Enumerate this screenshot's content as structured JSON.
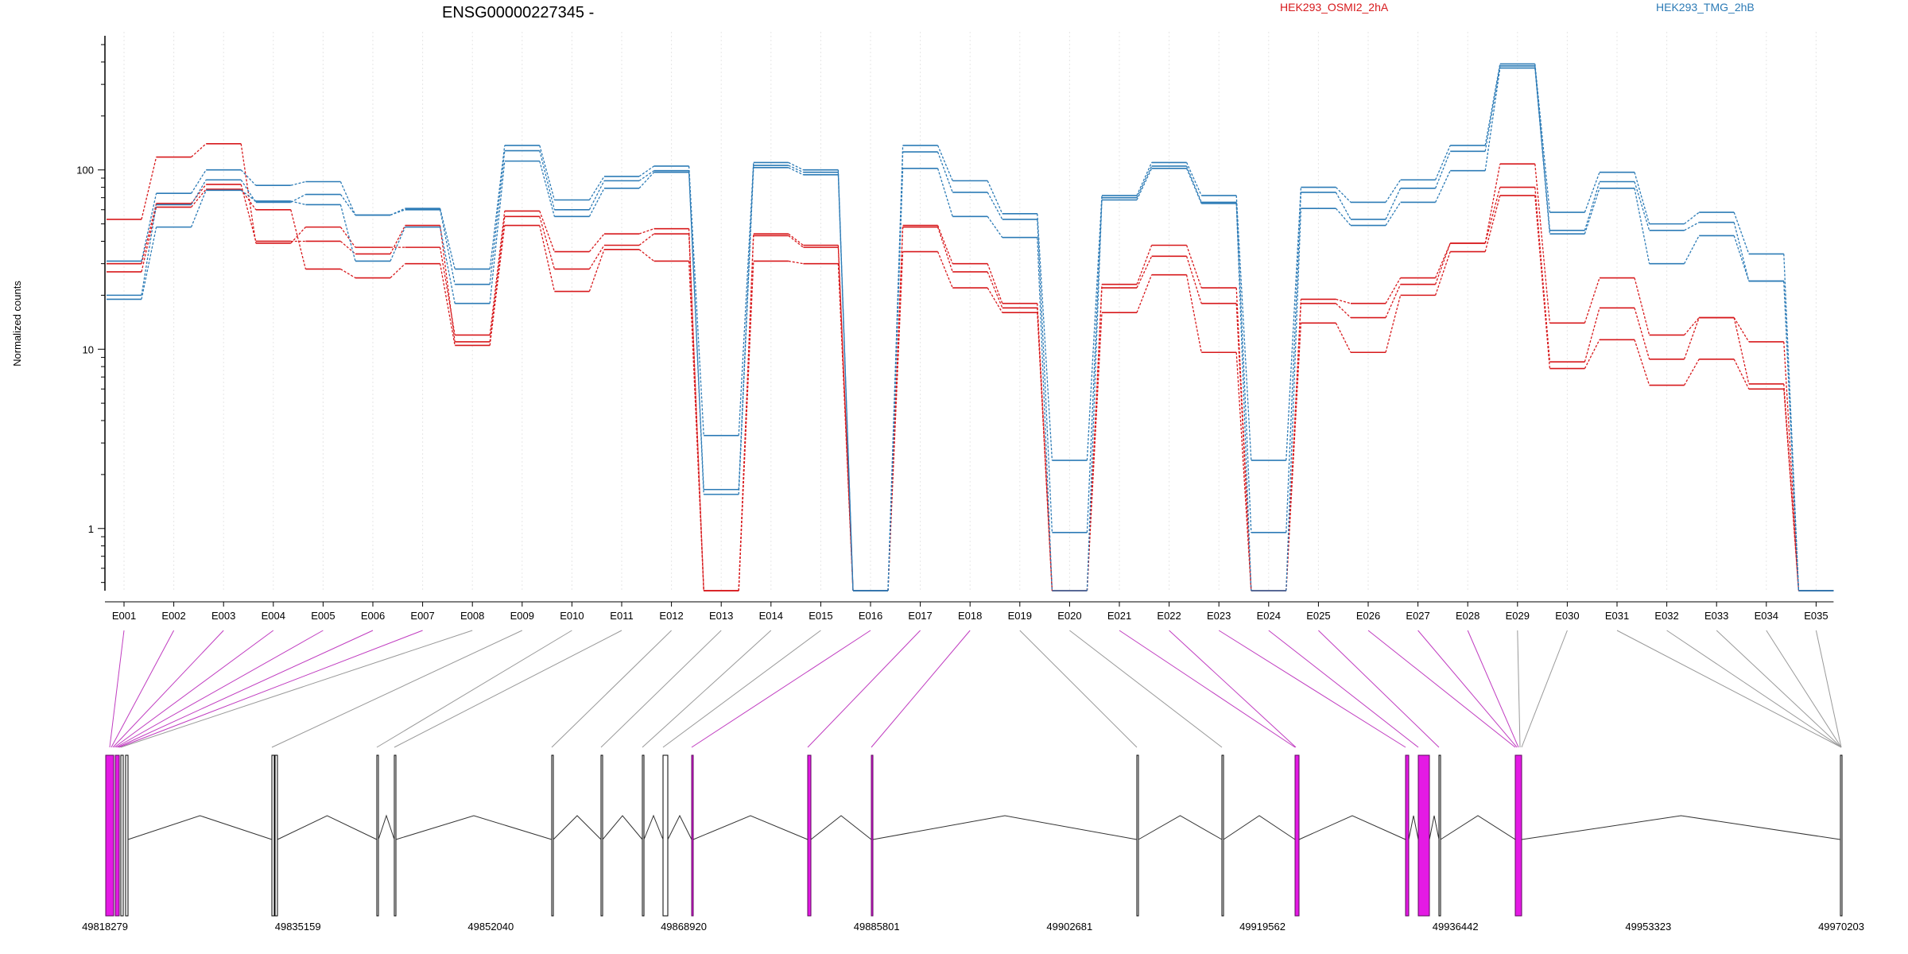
{
  "chart_data": {
    "type": "line",
    "title": "ENSG00000227345 -",
    "ylabel": "Normalized counts",
    "yscale": "log",
    "ylim": [
      0.45,
      560
    ],
    "yticks": [
      {
        "value": 1,
        "label": "1"
      },
      {
        "value": 10,
        "label": "10"
      },
      {
        "value": 100,
        "label": "100"
      }
    ],
    "categories": [
      "E001",
      "E002",
      "E003",
      "E004",
      "E005",
      "E006",
      "E007",
      "E008",
      "E009",
      "E010",
      "E011",
      "E012",
      "E013",
      "E014",
      "E015",
      "E016",
      "E017",
      "E018",
      "E019",
      "E020",
      "E021",
      "E022",
      "E023",
      "E024",
      "E025",
      "E026",
      "E027",
      "E028",
      "E029",
      "E030",
      "E031",
      "E032",
      "E033",
      "E034",
      "E035"
    ],
    "legend": [
      {
        "name": "HEK293_OSMI2_2hA",
        "color": "#d7191c"
      },
      {
        "name": "HEK293_TMG_2hB",
        "color": "#2c7bb6"
      }
    ],
    "series": [
      {
        "name": "HEK293_OSMI2_2hA",
        "color": "#d7191c",
        "values": [
          53,
          118,
          140,
          39,
          48,
          37,
          37,
          12,
          59,
          35,
          44,
          47,
          0.45,
          43,
          37,
          0.45,
          49,
          30,
          18,
          0.45,
          23,
          38,
          22,
          0.45,
          19,
          18,
          25,
          39,
          108,
          14,
          25,
          12,
          15,
          11,
          0.45
        ]
      },
      {
        "name": "HEK293_OSMI2_2hA",
        "color": "#d7191c",
        "values": [
          30,
          65,
          83,
          40,
          40,
          34,
          49,
          11,
          55,
          28,
          38,
          44,
          0.45,
          44,
          38,
          0.45,
          48,
          27,
          17,
          0.45,
          22,
          33,
          18,
          0.45,
          18,
          15,
          23,
          39,
          80,
          8.5,
          17,
          8.8,
          15,
          6.4,
          0.45
        ]
      },
      {
        "name": "HEK293_OSMI2_2hA",
        "color": "#d7191c",
        "values": [
          27,
          62,
          78,
          60,
          28,
          25,
          30,
          10.5,
          49,
          21,
          36,
          31,
          0.45,
          31,
          30,
          0.45,
          35,
          22,
          16,
          0.45,
          16,
          26,
          9.6,
          0.45,
          14,
          9.6,
          20,
          35,
          72,
          7.8,
          11.3,
          6.3,
          8.8,
          6.0,
          0.45
        ]
      },
      {
        "name": "HEK293_TMG_2hB",
        "color": "#2c7bb6",
        "values": [
          31,
          74,
          100,
          82,
          86,
          56,
          61,
          28,
          137,
          68,
          92,
          105,
          3.3,
          110,
          100,
          0.45,
          137,
          87,
          57,
          2.4,
          72,
          110,
          72,
          2.4,
          80,
          66,
          88,
          137,
          390,
          58,
          97,
          50,
          58,
          34,
          0.45
        ]
      },
      {
        "name": "HEK293_TMG_2hB",
        "color": "#2c7bb6",
        "values": [
          20,
          64,
          88,
          66,
          73,
          56,
          60,
          23,
          128,
          60,
          87,
          99,
          1.65,
          106,
          97,
          0.45,
          126,
          75,
          53,
          0.95,
          70,
          105,
          66,
          0.95,
          75,
          53,
          79,
          127,
          380,
          46,
          86,
          46,
          51,
          24,
          0.45
        ]
      },
      {
        "name": "HEK293_TMG_2hB",
        "color": "#2c7bb6",
        "values": [
          19,
          48,
          77,
          67,
          64,
          31,
          48,
          18,
          112,
          55,
          79,
          97,
          1.55,
          103,
          94,
          0.45,
          102,
          55,
          42,
          0.45,
          68,
          102,
          65,
          0.45,
          61,
          49,
          66,
          99,
          370,
          44,
          79,
          30,
          43,
          24,
          0.45
        ]
      }
    ],
    "genomic_coordinates": [
      "49818279",
      "49835159",
      "49852040",
      "49868920",
      "49885801",
      "49902681",
      "49919562",
      "49936442",
      "49953323",
      "49970203"
    ],
    "gene_model_highlight_color": "#e41ae4"
  }
}
